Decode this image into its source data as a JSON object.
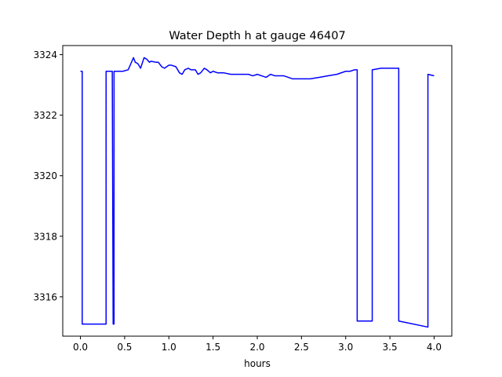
{
  "chart_data": {
    "type": "line",
    "title": "Water Depth h at gauge 46407",
    "xlabel": "hours",
    "ylabel": "",
    "xlim": [
      -0.2,
      4.2
    ],
    "ylim": [
      3314.7,
      3324.3
    ],
    "xticks": [
      {
        "value": 0.0,
        "label": "0.0"
      },
      {
        "value": 0.5,
        "label": "0.5"
      },
      {
        "value": 1.0,
        "label": "1.0"
      },
      {
        "value": 1.5,
        "label": "1.5"
      },
      {
        "value": 2.0,
        "label": "2.0"
      },
      {
        "value": 2.5,
        "label": "2.5"
      },
      {
        "value": 3.0,
        "label": "3.0"
      },
      {
        "value": 3.5,
        "label": "3.5"
      },
      {
        "value": 4.0,
        "label": "4.0"
      }
    ],
    "yticks": [
      {
        "value": 3316,
        "label": "3316"
      },
      {
        "value": 3318,
        "label": "3318"
      },
      {
        "value": 3320,
        "label": "3320"
      },
      {
        "value": 3322,
        "label": "3322"
      },
      {
        "value": 3324,
        "label": "3324"
      }
    ],
    "grid": false,
    "legend": "none",
    "series": [
      {
        "color": "#0000ff",
        "x": [
          0.0,
          0.02,
          0.02,
          0.29,
          0.29,
          0.36,
          0.37,
          0.38,
          0.38,
          0.48,
          0.54,
          0.57,
          0.6,
          0.62,
          0.65,
          0.68,
          0.72,
          0.75,
          0.78,
          0.8,
          0.85,
          0.88,
          0.92,
          0.95,
          1.0,
          1.03,
          1.08,
          1.12,
          1.15,
          1.18,
          1.22,
          1.25,
          1.3,
          1.33,
          1.36,
          1.4,
          1.43,
          1.47,
          1.5,
          1.55,
          1.58,
          1.62,
          1.7,
          1.78,
          1.85,
          1.9,
          1.95,
          2.0,
          2.05,
          2.1,
          2.15,
          2.2,
          2.3,
          2.35,
          2.4,
          2.5,
          2.6,
          2.7,
          2.8,
          2.9,
          3.0,
          3.05,
          3.1,
          3.13,
          3.13,
          3.3,
          3.3,
          3.4,
          3.6,
          3.6,
          3.93,
          3.93,
          4.0
        ],
        "y": [
          3323.45,
          3323.45,
          3315.1,
          3315.1,
          3323.45,
          3323.45,
          3315.1,
          3315.1,
          3323.45,
          3323.45,
          3323.5,
          3323.7,
          3323.9,
          3323.75,
          3323.7,
          3323.55,
          3323.9,
          3323.85,
          3323.75,
          3323.78,
          3323.75,
          3323.75,
          3323.6,
          3323.55,
          3323.65,
          3323.65,
          3323.6,
          3323.4,
          3323.35,
          3323.5,
          3323.55,
          3323.5,
          3323.5,
          3323.35,
          3323.4,
          3323.55,
          3323.5,
          3323.4,
          3323.45,
          3323.4,
          3323.4,
          3323.4,
          3323.35,
          3323.35,
          3323.35,
          3323.35,
          3323.3,
          3323.35,
          3323.3,
          3323.25,
          3323.35,
          3323.3,
          3323.3,
          3323.25,
          3323.2,
          3323.2,
          3323.2,
          3323.25,
          3323.3,
          3323.35,
          3323.45,
          3323.45,
          3323.5,
          3323.5,
          3315.2,
          3315.2,
          3323.5,
          3323.55,
          3323.55,
          3315.2,
          3315.0,
          3323.35,
          3323.3
        ]
      }
    ]
  }
}
